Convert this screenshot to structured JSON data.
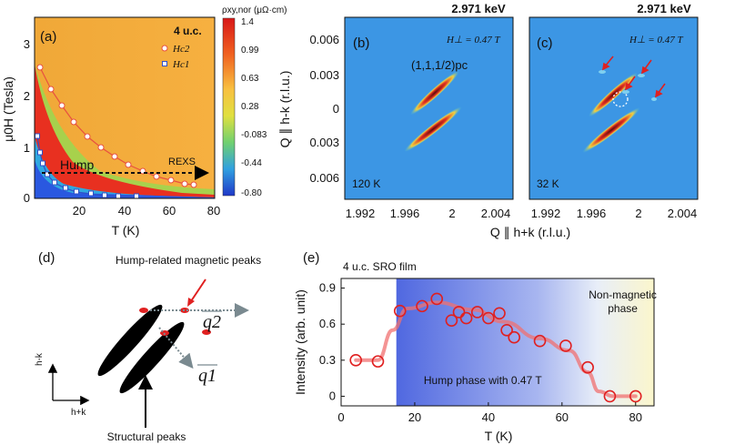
{
  "panel_a": {
    "label": "(a)",
    "sample": "4 u.c.",
    "xlabel": "T (K)",
    "ylabel": "μ0H (Tesla)",
    "xticks": [
      "20",
      "40",
      "60",
      "80"
    ],
    "yticks": [
      "0",
      "1",
      "2",
      "3"
    ],
    "legend": [
      "Hc2",
      "Hc1"
    ],
    "colorbar_title": "ρxy,nor (μΩ·cm)",
    "colorbar_ticks": [
      "1.4",
      "0.99",
      "0.63",
      "0.28",
      "-0.083",
      "-0.44",
      "-0.80"
    ],
    "hump_label": "Hump",
    "rexs_label": "REXS",
    "colors": {
      "hot": "#e83020",
      "mid": "#f5a030",
      "warm": "#f7b840",
      "cool": "#2a58e0",
      "green": "#6cc860"
    }
  },
  "panel_b": {
    "label": "(b)",
    "energy": "2.971 keV",
    "field": "H⊥ = 0.47 T",
    "temp": "120 K",
    "peak_label": "(1,1,1/2)pc"
  },
  "panel_c": {
    "label": "(c)",
    "energy": "2.971 keV",
    "field": "H⊥ = 0.47 T",
    "temp": "32 K"
  },
  "map_axes": {
    "ylabel": "Q ∥ h-k (r.l.u.)",
    "xlabel": "Q ∥ h+k (r.l.u.)",
    "yticks": [
      "0.006",
      "0.003",
      "0",
      "0.003",
      "0.006"
    ],
    "xticks": [
      "1.992",
      "1.996",
      "2",
      "2.004"
    ]
  },
  "panel_d": {
    "label": "(d)",
    "magnetic_label": "Hump-related magnetic peaks",
    "structural_label": "Structural peaks",
    "axis_h_minus_k": "h-k",
    "axis_h_plus_k": "h+k",
    "q1": "q1",
    "q2": "q2"
  },
  "chart_data": {
    "type": "scatter",
    "title": "4 u.c. SRO film",
    "panel_label": "(e)",
    "xlabel": "T (K)",
    "ylabel": "Intensity (arb. unit)",
    "xlim": [
      0,
      85
    ],
    "ylim": [
      -0.08,
      0.98
    ],
    "xticks": [
      0,
      20,
      40,
      60,
      80
    ],
    "yticks": [
      0,
      0.3,
      0.6,
      0.9
    ],
    "series": [
      {
        "name": "Intensity",
        "x": [
          4,
          10,
          16,
          22,
          26,
          30,
          32,
          34,
          37,
          40,
          43,
          45,
          47,
          54,
          61,
          67,
          73,
          80
        ],
        "y": [
          0.3,
          0.29,
          0.71,
          0.75,
          0.81,
          0.63,
          0.7,
          0.65,
          0.7,
          0.65,
          0.69,
          0.55,
          0.49,
          0.46,
          0.42,
          0.24,
          0.0,
          0.0
        ]
      }
    ],
    "regions": [
      {
        "label": "Hump phase with 0.47 T",
        "from": 15,
        "to": 70,
        "color": "#6a7fe6"
      },
      {
        "label": "Non-magnetic phase",
        "from": 62,
        "to": 85,
        "color": "#f8f3c4"
      }
    ]
  }
}
